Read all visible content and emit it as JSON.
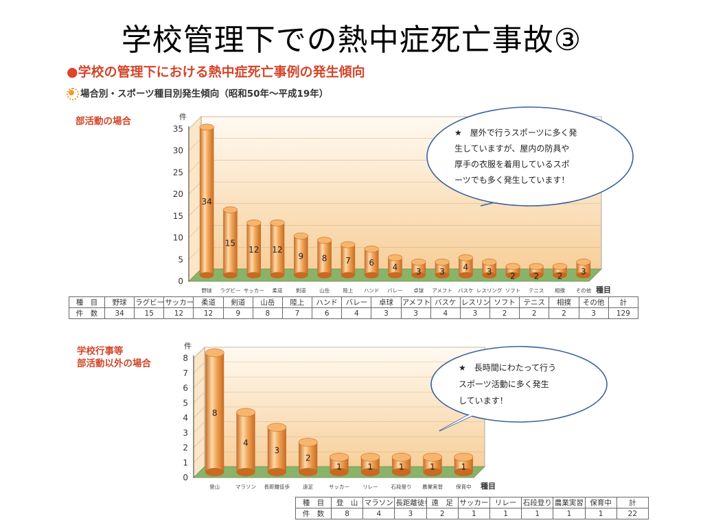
{
  "slide_title": "学校管理下での熱中症死亡事故③",
  "heading": "学校の管理下における熱中症死亡事例の発生傾向",
  "subheading": "場合別・スポーツ種目別発生傾向（昭和50年～平成19年）",
  "icons": {
    "heading_bullet": "red-circle-bullet",
    "subheading_bullet": "sun-icon"
  },
  "colors": {
    "bar": "#f0a65a",
    "bar_dark": "#c76a22",
    "floor": "#8ab36a",
    "heading": "#d2462a"
  },
  "chart_data": [
    {
      "type": "bar",
      "section_label": "部活動の場合",
      "ylabel": "件",
      "xlabel": "種目",
      "ylim": [
        0,
        35
      ],
      "yticks": [
        0,
        5,
        10,
        15,
        20,
        25,
        30,
        35
      ],
      "categories": [
        "野球",
        "ラグビー",
        "サッカー",
        "柔道",
        "剣道",
        "山岳",
        "陸上",
        "ハンド",
        "バレー",
        "卓球",
        "アメフト",
        "バスケ",
        "レスリング",
        "ソフト",
        "テニス",
        "相撲",
        "その他"
      ],
      "values": [
        34,
        15,
        12,
        12,
        9,
        8,
        7,
        6,
        4,
        3,
        3,
        4,
        3,
        2,
        2,
        2,
        3
      ],
      "callout": [
        "★　屋外で行うスポーツに多く発",
        "生していますが、屋内の防具や",
        "厚手の衣服を着用しているスポ",
        "ーツでも多く発生しています！"
      ],
      "table": {
        "header_label": "種　目",
        "count_label": "件　数",
        "total_label": "計",
        "total": 129,
        "categories": [
          "野球",
          "ラグビー",
          "サッカー",
          "柔道",
          "剣道",
          "山岳",
          "陸上",
          "ハンド",
          "バレー",
          "卓球",
          "アメフト",
          "バスケ",
          "レスリング",
          "ソフト",
          "テニス",
          "相撲",
          "その他"
        ],
        "values": [
          34,
          15,
          12,
          12,
          9,
          8,
          7,
          6,
          4,
          3,
          3,
          4,
          3,
          2,
          2,
          2,
          3
        ]
      }
    },
    {
      "type": "bar",
      "section_label": [
        "学校行事等",
        "部活動以外の場合"
      ],
      "ylabel": "件",
      "xlabel": "種目",
      "ylim": [
        0,
        8
      ],
      "yticks": [
        0,
        1,
        2,
        3,
        4,
        5,
        6,
        7,
        8
      ],
      "categories": [
        "登山",
        "マラソン",
        "長距離徒歩",
        "遠足",
        "サッカー",
        "リレー",
        "石段登り",
        "農業実習",
        "保育中"
      ],
      "values": [
        8,
        4,
        3,
        2,
        1,
        1,
        1,
        1,
        1
      ],
      "callout": [
        "★　長時間にわたって行う",
        "スポーツ活動に多く発生",
        "しています！"
      ],
      "table": {
        "header_label": "種　目",
        "count_label": "件　数",
        "total_label": "計",
        "total": 22,
        "categories": [
          "登　山",
          "マラソン",
          "長距離徒歩",
          "遠　足",
          "サッカー",
          "リレー",
          "石段登り",
          "農業実習",
          "保育中"
        ],
        "values": [
          8,
          4,
          3,
          2,
          1,
          1,
          1,
          1,
          1
        ]
      }
    }
  ]
}
